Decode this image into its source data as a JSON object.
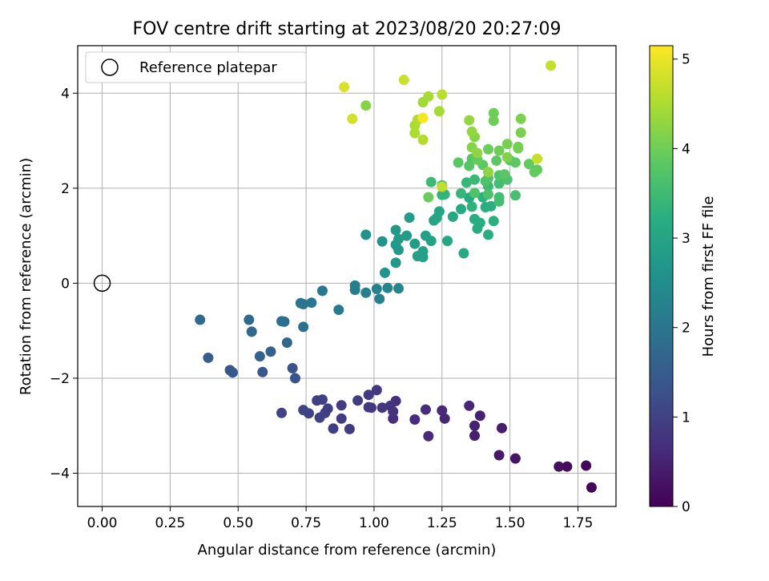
{
  "chart_data": {
    "type": "scatter",
    "title": "FOV centre drift starting at 2023/08/20 20:27:09",
    "xlabel": "Angular distance from reference (arcmin)",
    "ylabel": "Rotation from reference (arcmin)",
    "xlim": [
      -0.09,
      1.89
    ],
    "ylim": [
      -4.7,
      5.0
    ],
    "xticks": [
      0.0,
      0.25,
      0.5,
      0.75,
      1.0,
      1.25,
      1.5,
      1.75
    ],
    "xtick_labels": [
      "0.00",
      "0.25",
      "0.50",
      "0.75",
      "1.00",
      "1.25",
      "1.50",
      "1.75"
    ],
    "yticks": [
      -4,
      -2,
      0,
      2,
      4
    ],
    "ytick_labels": [
      "−4",
      "−2",
      "0",
      "2",
      "4"
    ],
    "grid": true,
    "legend": {
      "position": "top-left",
      "label": "Reference platepar"
    },
    "reference_point": {
      "x": 0.0,
      "y": 0.0
    },
    "colorbar": {
      "label": "Hours from first FF file",
      "range": [
        0,
        5.15
      ],
      "ticks": [
        0,
        1,
        2,
        3,
        4,
        5
      ],
      "tick_labels": [
        "0",
        "1",
        "2",
        "3",
        "4",
        "5"
      ],
      "colormap": "viridis"
    },
    "points": [
      {
        "x": 1.8,
        "y": -4.3,
        "c": 0.05
      },
      {
        "x": 1.78,
        "y": -3.84,
        "c": 0.1
      },
      {
        "x": 1.71,
        "y": -3.86,
        "c": 0.15
      },
      {
        "x": 1.68,
        "y": -3.86,
        "c": 0.2
      },
      {
        "x": 1.52,
        "y": -3.69,
        "c": 0.3
      },
      {
        "x": 1.46,
        "y": -3.62,
        "c": 0.35
      },
      {
        "x": 1.47,
        "y": -3.05,
        "c": 0.4
      },
      {
        "x": 1.37,
        "y": -3.21,
        "c": 0.45
      },
      {
        "x": 1.37,
        "y": -3.0,
        "c": 0.5
      },
      {
        "x": 1.39,
        "y": -2.79,
        "c": 0.5
      },
      {
        "x": 1.35,
        "y": -2.58,
        "c": 0.55
      },
      {
        "x": 1.26,
        "y": -2.85,
        "c": 0.55
      },
      {
        "x": 1.25,
        "y": -2.68,
        "c": 0.6
      },
      {
        "x": 1.2,
        "y": -3.22,
        "c": 0.6
      },
      {
        "x": 1.19,
        "y": -2.66,
        "c": 0.65
      },
      {
        "x": 1.15,
        "y": -2.87,
        "c": 0.65
      },
      {
        "x": 1.08,
        "y": -2.48,
        "c": 0.7
      },
      {
        "x": 1.07,
        "y": -2.85,
        "c": 0.7
      },
      {
        "x": 1.06,
        "y": -2.58,
        "c": 0.75
      },
      {
        "x": 1.07,
        "y": -2.7,
        "c": 0.75
      },
      {
        "x": 1.03,
        "y": -2.62,
        "c": 0.8
      },
      {
        "x": 1.01,
        "y": -2.25,
        "c": 0.8
      },
      {
        "x": 0.99,
        "y": -2.62,
        "c": 0.85
      },
      {
        "x": 0.98,
        "y": -2.35,
        "c": 0.85
      },
      {
        "x": 0.98,
        "y": -2.61,
        "c": 0.85
      },
      {
        "x": 0.94,
        "y": -2.47,
        "c": 0.9
      },
      {
        "x": 0.91,
        "y": -3.07,
        "c": 0.9
      },
      {
        "x": 0.88,
        "y": -2.57,
        "c": 0.9
      },
      {
        "x": 0.88,
        "y": -2.85,
        "c": 0.9
      },
      {
        "x": 0.85,
        "y": -3.06,
        "c": 0.95
      },
      {
        "x": 0.83,
        "y": -2.64,
        "c": 0.95
      },
      {
        "x": 0.82,
        "y": -2.73,
        "c": 0.95
      },
      {
        "x": 0.81,
        "y": -2.45,
        "c": 1.0
      },
      {
        "x": 0.79,
        "y": -2.47,
        "c": 1.0
      },
      {
        "x": 0.8,
        "y": -2.83,
        "c": 1.0
      },
      {
        "x": 0.76,
        "y": -2.74,
        "c": 1.0
      },
      {
        "x": 0.74,
        "y": -2.67,
        "c": 1.05
      },
      {
        "x": 0.66,
        "y": -2.73,
        "c": 1.05
      },
      {
        "x": 0.71,
        "y": -2.0,
        "c": 1.3
      },
      {
        "x": 0.7,
        "y": -1.79,
        "c": 1.3
      },
      {
        "x": 0.59,
        "y": -1.87,
        "c": 1.4
      },
      {
        "x": 0.48,
        "y": -1.88,
        "c": 1.4
      },
      {
        "x": 0.47,
        "y": -1.83,
        "c": 1.4
      },
      {
        "x": 0.39,
        "y": -1.57,
        "c": 1.5
      },
      {
        "x": 0.58,
        "y": -1.54,
        "c": 1.6
      },
      {
        "x": 0.62,
        "y": -1.44,
        "c": 1.6
      },
      {
        "x": 0.68,
        "y": -1.25,
        "c": 1.7
      },
      {
        "x": 0.55,
        "y": -1.02,
        "c": 1.7
      },
      {
        "x": 0.54,
        "y": -0.77,
        "c": 1.75
      },
      {
        "x": 0.36,
        "y": -0.77,
        "c": 1.8
      },
      {
        "x": 0.67,
        "y": -0.81,
        "c": 1.85
      },
      {
        "x": 0.66,
        "y": -0.8,
        "c": 1.9
      },
      {
        "x": 0.74,
        "y": -0.92,
        "c": 1.9
      },
      {
        "x": 0.73,
        "y": -0.42,
        "c": 2.0
      },
      {
        "x": 0.74,
        "y": -0.44,
        "c": 2.0
      },
      {
        "x": 0.77,
        "y": -0.41,
        "c": 2.0
      },
      {
        "x": 0.81,
        "y": -0.16,
        "c": 2.05
      },
      {
        "x": 0.87,
        "y": -0.56,
        "c": 2.1
      },
      {
        "x": 0.93,
        "y": -0.05,
        "c": 2.15
      },
      {
        "x": 0.93,
        "y": -0.14,
        "c": 2.15
      },
      {
        "x": 0.97,
        "y": -0.2,
        "c": 2.2
      },
      {
        "x": 1.01,
        "y": -0.12,
        "c": 2.25
      },
      {
        "x": 1.02,
        "y": -0.33,
        "c": 2.25
      },
      {
        "x": 1.05,
        "y": -0.1,
        "c": 2.3
      },
      {
        "x": 1.09,
        "y": -0.11,
        "c": 2.35
      },
      {
        "x": 0.97,
        "y": 1.02,
        "c": 2.6
      },
      {
        "x": 1.03,
        "y": 0.88,
        "c": 2.65
      },
      {
        "x": 1.04,
        "y": 0.22,
        "c": 2.65
      },
      {
        "x": 1.08,
        "y": 0.43,
        "c": 2.7
      },
      {
        "x": 1.08,
        "y": 1.12,
        "c": 2.75
      },
      {
        "x": 1.08,
        "y": 0.81,
        "c": 2.75
      },
      {
        "x": 1.09,
        "y": 0.7,
        "c": 2.75
      },
      {
        "x": 1.09,
        "y": 0.93,
        "c": 2.8
      },
      {
        "x": 1.12,
        "y": 1.0,
        "c": 2.8
      },
      {
        "x": 1.13,
        "y": 1.38,
        "c": 2.85
      },
      {
        "x": 1.15,
        "y": 0.83,
        "c": 2.85
      },
      {
        "x": 1.16,
        "y": 0.57,
        "c": 2.9
      },
      {
        "x": 1.18,
        "y": 0.55,
        "c": 2.9
      },
      {
        "x": 1.18,
        "y": 0.67,
        "c": 2.9
      },
      {
        "x": 1.19,
        "y": 1.0,
        "c": 2.95
      },
      {
        "x": 1.21,
        "y": 0.89,
        "c": 2.95
      },
      {
        "x": 1.22,
        "y": 1.32,
        "c": 3.0
      },
      {
        "x": 1.23,
        "y": 1.37,
        "c": 3.0
      },
      {
        "x": 1.24,
        "y": 1.51,
        "c": 3.0
      },
      {
        "x": 1.27,
        "y": 0.89,
        "c": 3.05
      },
      {
        "x": 1.29,
        "y": 1.4,
        "c": 3.05
      },
      {
        "x": 1.32,
        "y": 1.56,
        "c": 3.1
      },
      {
        "x": 1.33,
        "y": 0.63,
        "c": 3.1
      },
      {
        "x": 1.35,
        "y": 1.8,
        "c": 3.15
      },
      {
        "x": 1.37,
        "y": 1.35,
        "c": 3.15
      },
      {
        "x": 1.38,
        "y": 1.15,
        "c": 3.15
      },
      {
        "x": 1.39,
        "y": 1.27,
        "c": 3.2
      },
      {
        "x": 1.41,
        "y": 1.6,
        "c": 3.2
      },
      {
        "x": 1.42,
        "y": 1.02,
        "c": 3.2
      },
      {
        "x": 1.44,
        "y": 1.31,
        "c": 3.25
      },
      {
        "x": 1.43,
        "y": 1.62,
        "c": 3.25
      },
      {
        "x": 1.36,
        "y": 1.61,
        "c": 3.3
      },
      {
        "x": 1.4,
        "y": 1.81,
        "c": 3.3
      },
      {
        "x": 1.25,
        "y": 1.86,
        "c": 3.35
      },
      {
        "x": 1.26,
        "y": 1.87,
        "c": 3.35
      },
      {
        "x": 1.32,
        "y": 1.89,
        "c": 3.4
      },
      {
        "x": 1.34,
        "y": 2.12,
        "c": 3.4
      },
      {
        "x": 1.37,
        "y": 2.18,
        "c": 3.45
      },
      {
        "x": 1.42,
        "y": 2.04,
        "c": 3.45
      },
      {
        "x": 1.21,
        "y": 2.13,
        "c": 3.5
      },
      {
        "x": 1.25,
        "y": 2.06,
        "c": 3.5
      },
      {
        "x": 1.46,
        "y": 1.72,
        "c": 3.55
      },
      {
        "x": 1.46,
        "y": 2.1,
        "c": 3.55
      },
      {
        "x": 1.46,
        "y": 1.81,
        "c": 3.55
      },
      {
        "x": 1.52,
        "y": 1.85,
        "c": 3.6
      },
      {
        "x": 1.49,
        "y": 2.18,
        "c": 3.65
      },
      {
        "x": 1.41,
        "y": 2.15,
        "c": 3.65
      },
      {
        "x": 1.42,
        "y": 1.87,
        "c": 3.65
      },
      {
        "x": 1.42,
        "y": 2.21,
        "c": 3.7
      },
      {
        "x": 1.46,
        "y": 2.27,
        "c": 3.7
      },
      {
        "x": 1.37,
        "y": 1.9,
        "c": 3.7
      },
      {
        "x": 1.36,
        "y": 2.62,
        "c": 3.75
      },
      {
        "x": 1.35,
        "y": 2.47,
        "c": 3.75
      },
      {
        "x": 1.31,
        "y": 2.54,
        "c": 3.8
      },
      {
        "x": 1.48,
        "y": 2.29,
        "c": 3.8
      },
      {
        "x": 1.5,
        "y": 2.59,
        "c": 3.8
      },
      {
        "x": 1.52,
        "y": 2.54,
        "c": 3.85
      },
      {
        "x": 1.45,
        "y": 2.58,
        "c": 3.85
      },
      {
        "x": 1.4,
        "y": 2.49,
        "c": 3.85
      },
      {
        "x": 1.38,
        "y": 2.6,
        "c": 3.9
      },
      {
        "x": 1.57,
        "y": 2.51,
        "c": 3.9
      },
      {
        "x": 1.59,
        "y": 2.34,
        "c": 3.9
      },
      {
        "x": 1.6,
        "y": 2.39,
        "c": 3.9
      },
      {
        "x": 1.2,
        "y": 1.81,
        "c": 3.95
      },
      {
        "x": 1.42,
        "y": 2.82,
        "c": 3.95
      },
      {
        "x": 1.44,
        "y": 3.42,
        "c": 4.0
      },
      {
        "x": 1.44,
        "y": 3.58,
        "c": 4.0
      },
      {
        "x": 1.46,
        "y": 2.79,
        "c": 4.0
      },
      {
        "x": 1.49,
        "y": 2.93,
        "c": 4.05
      },
      {
        "x": 1.53,
        "y": 2.87,
        "c": 4.05
      },
      {
        "x": 1.53,
        "y": 2.84,
        "c": 4.05
      },
      {
        "x": 1.54,
        "y": 3.17,
        "c": 4.1
      },
      {
        "x": 1.54,
        "y": 3.46,
        "c": 4.1
      },
      {
        "x": 1.49,
        "y": 2.65,
        "c": 4.15
      },
      {
        "x": 1.37,
        "y": 3.08,
        "c": 4.2
      },
      {
        "x": 1.36,
        "y": 2.86,
        "c": 4.2
      },
      {
        "x": 1.38,
        "y": 2.74,
        "c": 4.25
      },
      {
        "x": 1.42,
        "y": 2.34,
        "c": 4.25
      },
      {
        "x": 1.36,
        "y": 3.19,
        "c": 4.3
      },
      {
        "x": 1.35,
        "y": 3.43,
        "c": 4.3
      },
      {
        "x": 0.97,
        "y": 3.74,
        "c": 4.2
      },
      {
        "x": 1.18,
        "y": 3.81,
        "c": 4.4
      },
      {
        "x": 1.24,
        "y": 3.62,
        "c": 4.45
      },
      {
        "x": 1.2,
        "y": 3.93,
        "c": 4.45
      },
      {
        "x": 1.15,
        "y": 3.16,
        "c": 4.5
      },
      {
        "x": 1.15,
        "y": 3.32,
        "c": 4.5
      },
      {
        "x": 1.16,
        "y": 3.44,
        "c": 4.55
      },
      {
        "x": 1.18,
        "y": 3.02,
        "c": 4.55
      },
      {
        "x": 1.25,
        "y": 3.97,
        "c": 4.6
      },
      {
        "x": 1.25,
        "y": 2.03,
        "c": 4.65
      },
      {
        "x": 1.6,
        "y": 2.62,
        "c": 4.7
      },
      {
        "x": 1.65,
        "y": 4.58,
        "c": 4.7
      },
      {
        "x": 1.11,
        "y": 4.28,
        "c": 4.75
      },
      {
        "x": 0.92,
        "y": 3.46,
        "c": 4.8
      },
      {
        "x": 0.89,
        "y": 4.13,
        "c": 4.85
      },
      {
        "x": 1.18,
        "y": 3.48,
        "c": 5.1
      }
    ]
  }
}
